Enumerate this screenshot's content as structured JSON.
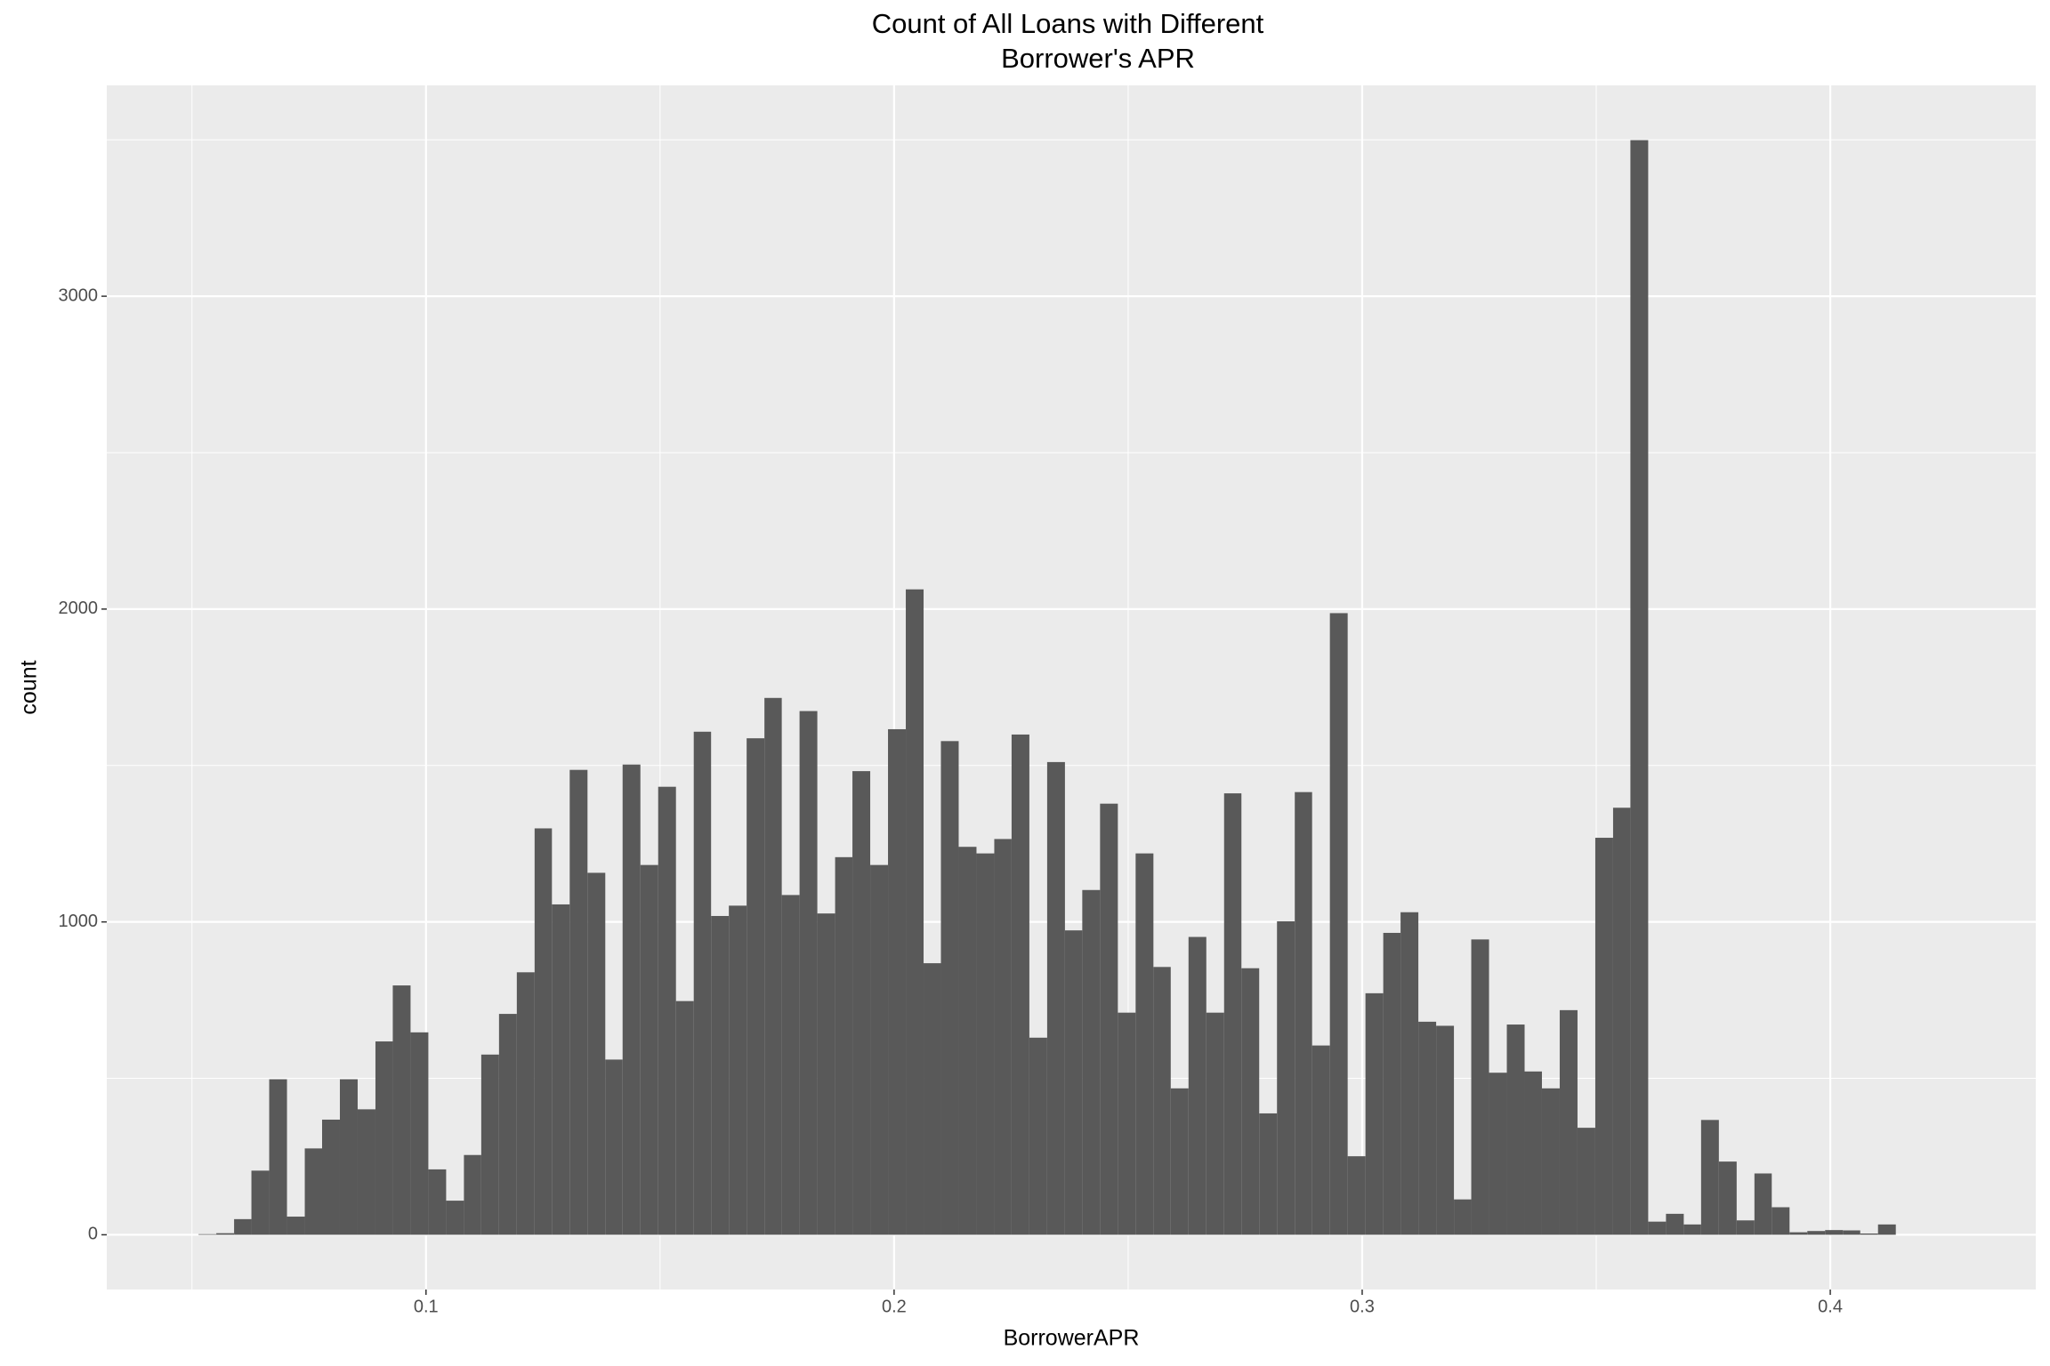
{
  "chart_data": {
    "type": "histogram",
    "title": [
      "Count of All Loans with Different",
      "Borrower's APR"
    ],
    "x_label": "BorrowerAPR",
    "y_label": "count",
    "bins": [
      0.0514,
      0.0552,
      0.059,
      0.0627,
      0.0665,
      0.0703,
      0.0741,
      0.0778,
      0.0816,
      0.0854,
      0.0892,
      0.0929,
      0.0967,
      0.1005,
      0.1043,
      0.1081,
      0.1118,
      0.1156,
      0.1194,
      0.1232,
      0.1269,
      0.1307,
      0.1345,
      0.1383,
      0.142,
      0.1458,
      0.1496,
      0.1534,
      0.1572,
      0.1609,
      0.1647,
      0.1685,
      0.1723,
      0.176,
      0.1798,
      0.1836,
      0.1874,
      0.1911,
      0.1949,
      0.1987,
      0.2025,
      0.2063,
      0.21,
      0.2138,
      0.2176,
      0.2214,
      0.2251,
      0.2289,
      0.2327,
      0.2365,
      0.2402,
      0.244,
      0.2478,
      0.2516,
      0.2554,
      0.2591,
      0.2629,
      0.2667,
      0.2705,
      0.2742,
      0.278,
      0.2818,
      0.2856,
      0.2893,
      0.2931,
      0.2969,
      0.3007,
      0.3045,
      0.3082,
      0.312,
      0.3158,
      0.3196,
      0.3233,
      0.3271,
      0.3309,
      0.3347,
      0.3384,
      0.3422,
      0.346,
      0.3498,
      0.3536,
      0.3573,
      0.3611,
      0.3649,
      0.3687,
      0.3724,
      0.3762,
      0.38,
      0.3838,
      0.3875,
      0.3913,
      0.3951,
      0.3989,
      0.4027,
      0.4064,
      0.4102,
      0.414
    ],
    "values": [
      2,
      5,
      50,
      205,
      497,
      58,
      276,
      368,
      497,
      401,
      618,
      797,
      647,
      209,
      109,
      255,
      576,
      706,
      839,
      1299,
      1056,
      1486,
      1157,
      560,
      1503,
      1182,
      1432,
      747,
      1608,
      1019,
      1052,
      1587,
      1716,
      1086,
      1674,
      1027,
      1207,
      1482,
      1182,
      1616,
      2063,
      868,
      1578,
      1240,
      1219,
      1265,
      1599,
      630,
      1511,
      973,
      1102,
      1378,
      710,
      1219,
      856,
      468,
      952,
      710,
      1411,
      852,
      388,
      1002,
      1415,
      605,
      1987,
      251,
      772,
      965,
      1031,
      681,
      668,
      113,
      944,
      518,
      672,
      522,
      468,
      718,
      342,
      1269,
      1365,
      3499,
      42,
      67,
      33,
      367,
      234,
      46,
      196,
      88,
      8,
      12,
      15,
      14,
      4,
      33
    ],
    "color": "#595959",
    "xlim": [
      0.0318,
      0.4439
    ],
    "xticks": [
      0.1,
      0.2,
      0.3,
      0.4
    ],
    "ylim": [
      -175,
      3674
    ],
    "yticks": [
      0,
      1000,
      2000,
      3000
    ],
    "grid": true
  }
}
